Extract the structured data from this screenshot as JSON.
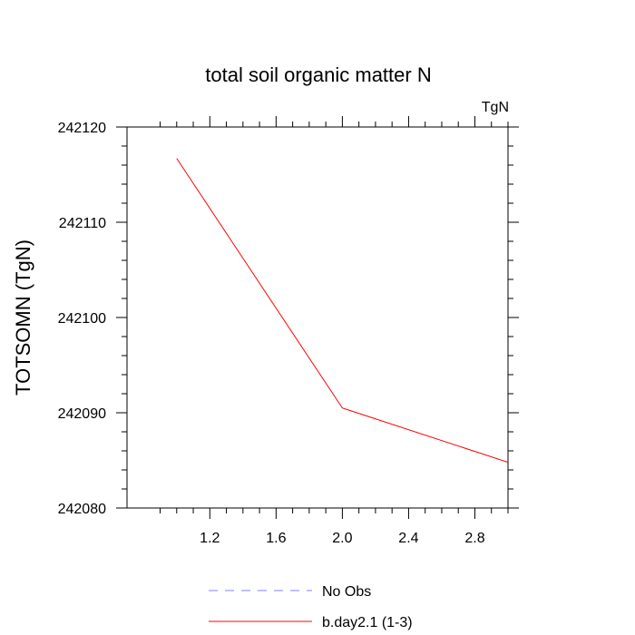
{
  "chart_data": {
    "type": "line",
    "title": "total soil organic matter N",
    "units_label": "TgN",
    "xlabel": "",
    "ylabel": "TOTSOMN  (TgN)",
    "xlim": [
      0.7,
      3.0
    ],
    "ylim": [
      242080,
      242120
    ],
    "x_ticks": [
      1.2,
      1.6,
      2.0,
      2.4,
      2.8
    ],
    "x_tick_labels": [
      "1.2",
      "1.6",
      "2.0",
      "2.4",
      "2.8"
    ],
    "y_ticks": [
      242080,
      242090,
      242100,
      242110,
      242120
    ],
    "y_tick_labels": [
      "242080",
      "242090",
      "242100",
      "242110",
      "242120"
    ],
    "grid": false,
    "legend_position": "bottom",
    "series": [
      {
        "name": "No Obs",
        "color": "#8080ff",
        "dash": "dashed",
        "x": [],
        "values": []
      },
      {
        "name": "b.day2.1 (1-3)",
        "color": "#ff0000",
        "dash": "solid",
        "x": [
          1.0,
          2.0,
          3.0
        ],
        "values": [
          242116.7,
          242090.5,
          242084.8
        ]
      }
    ]
  }
}
